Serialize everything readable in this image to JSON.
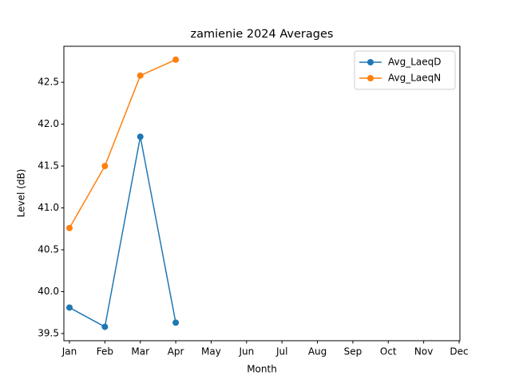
{
  "chart_data": {
    "type": "line",
    "title": "zamienie 2024 Averages",
    "x_label": "Month",
    "y_label": "Level (dB)",
    "categories": [
      "Jan",
      "Feb",
      "Mar",
      "Apr",
      "May",
      "Jun",
      "Jul",
      "Aug",
      "Sep",
      "Oct",
      "Nov",
      "Dec"
    ],
    "series": [
      {
        "name": "Avg_LaeqD",
        "color": "#1f77b4",
        "values": [
          39.81,
          39.58,
          41.85,
          39.63,
          null,
          null,
          null,
          null,
          null,
          null,
          null,
          null
        ]
      },
      {
        "name": "Avg_LaeqN",
        "color": "#ff7f0e",
        "values": [
          40.76,
          41.5,
          42.58,
          42.77,
          null,
          null,
          null,
          null,
          null,
          null,
          null,
          null
        ]
      }
    ],
    "ylim": [
      39.414,
      42.93
    ],
    "yticks": [
      39.5,
      40.0,
      40.5,
      41.0,
      41.5,
      42.0,
      42.5
    ],
    "legend": "upper right",
    "grid": false
  }
}
